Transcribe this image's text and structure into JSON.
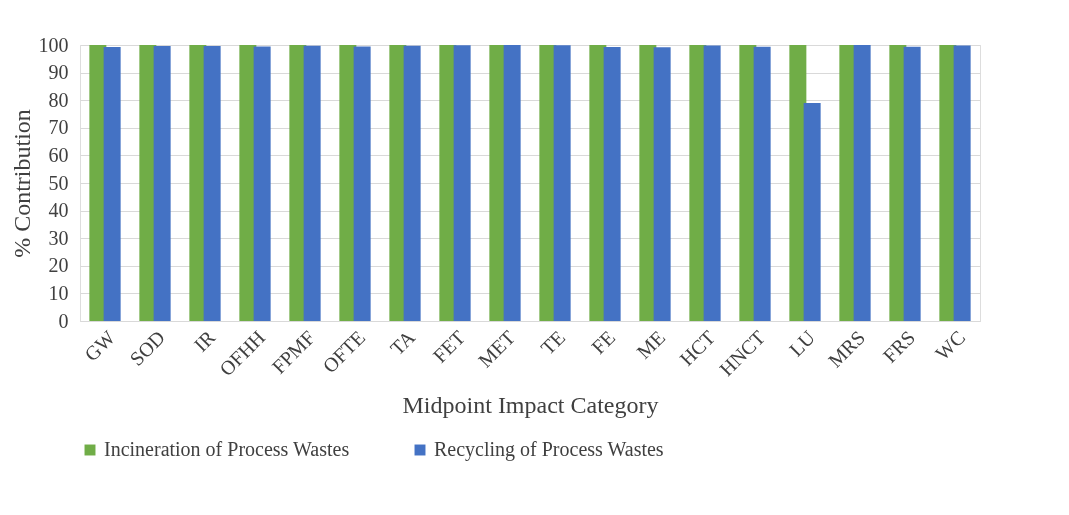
{
  "chart_data": {
    "type": "bar",
    "xlabel": "Midpoint Impact Category",
    "ylabel": "% Contribution",
    "categories": [
      "GW",
      "SOD",
      "IR",
      "OFHH",
      "FPMF",
      "OFTE",
      "TA",
      "FET",
      "MET",
      "TE",
      "FE",
      "ME",
      "HCT",
      "HNCT",
      "LU",
      "MRS",
      "FRS",
      "WC"
    ],
    "series": [
      {
        "name": "Incineration of Process Wastes",
        "color": "#70ad47",
        "values": [
          100,
          100,
          100,
          100,
          100,
          100,
          100,
          100,
          100,
          100,
          100,
          100,
          100,
          100,
          100,
          100,
          100,
          100
        ]
      },
      {
        "name": "Recycling of Process Wastes",
        "color": "#4472c4",
        "values": [
          99.3,
          99.6,
          99.6,
          99.5,
          99.7,
          99.5,
          99.7,
          99.9,
          100,
          99.9,
          99.3,
          99.2,
          99.8,
          99.4,
          79,
          100,
          99.4,
          99.8
        ]
      }
    ],
    "ylim": [
      0,
      100
    ],
    "yticks": [
      0,
      10,
      20,
      30,
      40,
      50,
      60,
      70,
      80,
      90,
      100
    ],
    "grid": "y",
    "legend": "bottom"
  }
}
